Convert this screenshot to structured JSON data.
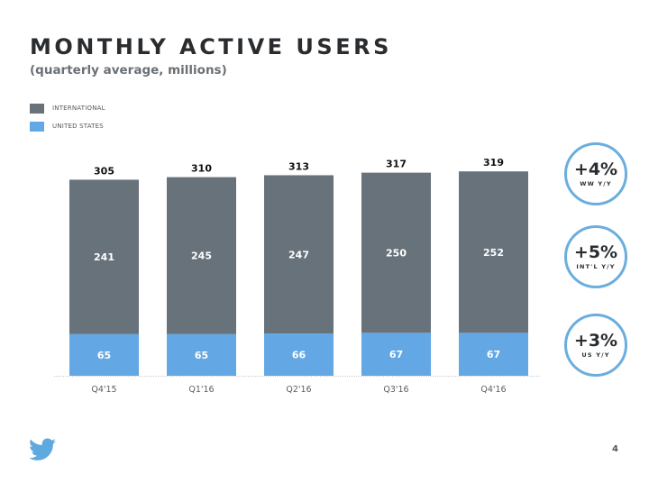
{
  "slide": {
    "title": "MONTHLY ACTIVE USERS",
    "subtitle": "(quarterly average, millions)",
    "page_number": "4",
    "logo": "twitter-bird-icon"
  },
  "colors": {
    "international": "#67727b",
    "united_states": "#63a8e4",
    "badge_ring": "#6aaede",
    "logo": "#5ea9dd"
  },
  "legend": [
    {
      "label": "INTERNATIONAL",
      "series": "international"
    },
    {
      "label": "UNITED STATES",
      "series": "united_states"
    }
  ],
  "badges": [
    {
      "value": "+4%",
      "label": "WW Y/Y"
    },
    {
      "value": "+5%",
      "label": "INT'L Y/Y"
    },
    {
      "value": "+3%",
      "label": "US Y/Y"
    }
  ],
  "chart_data": {
    "type": "bar",
    "stacked": true,
    "title": "MONTHLY ACTIVE USERS",
    "subtitle": "(quarterly average, millions)",
    "xlabel": "",
    "ylabel": "",
    "ylim": [
      0,
      330
    ],
    "grid": false,
    "legend_position": "top-left",
    "categories": [
      "Q4'15",
      "Q1'16",
      "Q2'16",
      "Q3'16",
      "Q4'16"
    ],
    "series": [
      {
        "name": "UNITED STATES",
        "key": "united_states",
        "values": [
          65,
          65,
          66,
          67,
          67
        ]
      },
      {
        "name": "INTERNATIONAL",
        "key": "international",
        "values": [
          241,
          245,
          247,
          250,
          252
        ]
      }
    ],
    "totals": [
      305,
      310,
      313,
      317,
      319
    ]
  }
}
